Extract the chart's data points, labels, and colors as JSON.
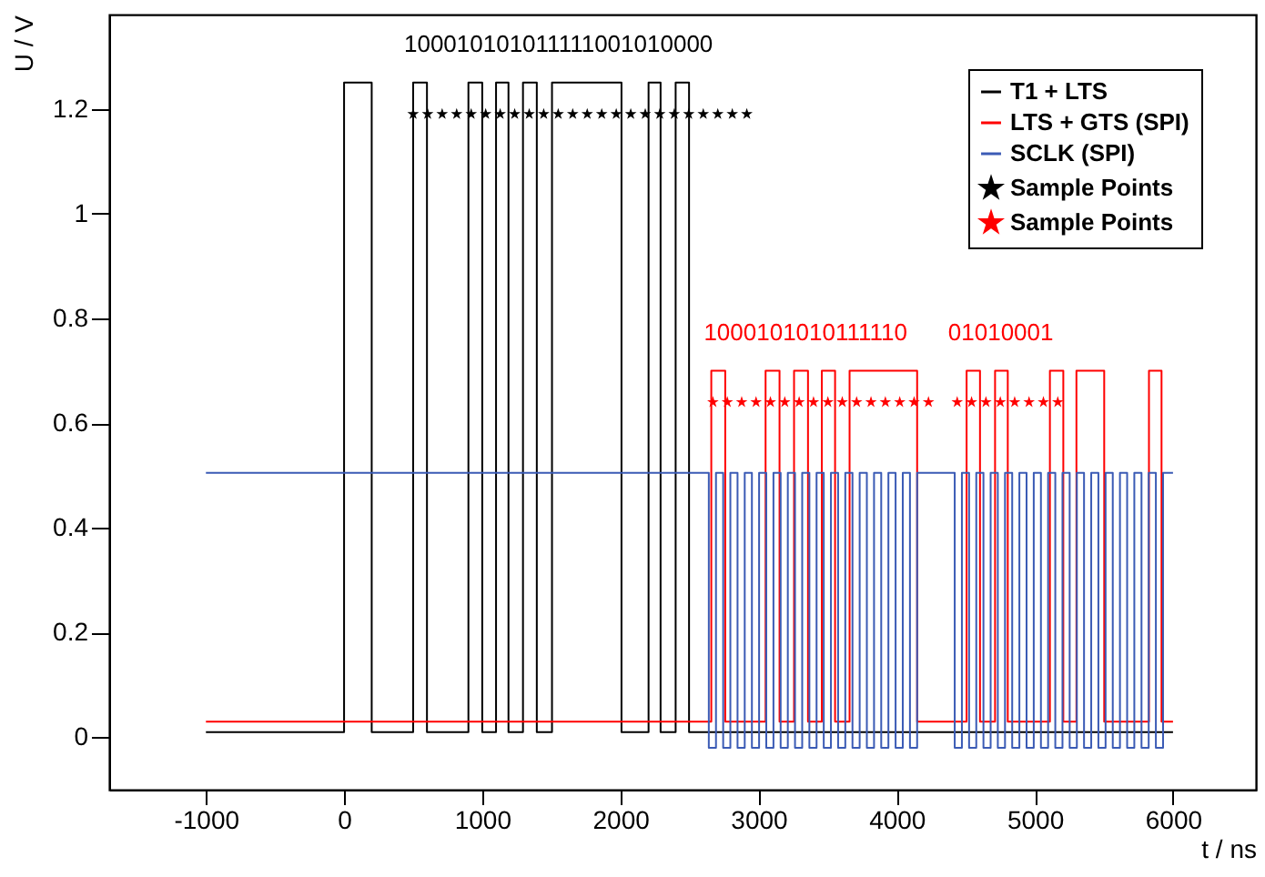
{
  "chart_data": {
    "type": "line",
    "xlabel": "t / ns",
    "ylabel": "U / V",
    "xlim": [
      -1700,
      6600
    ],
    "ylim": [
      -0.1,
      1.38
    ],
    "xticks": [
      -1000,
      0,
      1000,
      2000,
      3000,
      4000,
      5000,
      6000
    ],
    "yticks": [
      0,
      0.2,
      0.4,
      0.6,
      0.8,
      1,
      1.2
    ],
    "legend": "top right",
    "annotations": [
      {
        "text": "100010101011111001010000",
        "x": 500,
        "y": 1.19
      },
      {
        "text": "1000101010111110",
        "x": 2670,
        "y": 0.64
      },
      {
        "text": "01010001",
        "x": 4438,
        "y": 0.64
      }
    ],
    "series": [
      {
        "name": "T1 + LTS",
        "color": "#000000",
        "marker": "none",
        "x": [
          -1000,
          0,
          0,
          200,
          200,
          500,
          500,
          600,
          600,
          900,
          900,
          1000,
          1000,
          1100,
          1100,
          1190,
          1190,
          1295,
          1295,
          1395,
          1395,
          1505,
          1505,
          2008,
          2008,
          2204,
          2204,
          2291,
          2291,
          2400,
          2400,
          2497,
          2497,
          6000
        ],
        "values": [
          0.01,
          0.01,
          1.25,
          1.25,
          0.01,
          0.01,
          1.25,
          1.25,
          0.01,
          0.01,
          1.25,
          1.25,
          0.01,
          0.01,
          1.25,
          1.25,
          0.01,
          0.01,
          1.25,
          1.25,
          0.01,
          0.01,
          1.25,
          1.25,
          0.01,
          0.01,
          1.25,
          1.25,
          0.01,
          0.01,
          1.25,
          1.25,
          0.01,
          0.01
        ]
      },
      {
        "name": "LTS + GTS (SPI)",
        "color": "#ff0000",
        "marker": "none",
        "x": [
          -1000,
          2658,
          2658,
          2759,
          2759,
          3051,
          3051,
          3152,
          3152,
          3257,
          3257,
          3358,
          3358,
          3458,
          3458,
          3554,
          3554,
          3659,
          3659,
          4148,
          4148,
          4506,
          4506,
          4603,
          4603,
          4712,
          4712,
          4804,
          4804,
          5109,
          5109,
          5206,
          5206,
          5301,
          5301,
          5502,
          5502,
          5826,
          5826,
          5917,
          5917,
          6000
        ],
        "values": [
          0.03,
          0.03,
          0.7,
          0.7,
          0.03,
          0.03,
          0.7,
          0.7,
          0.03,
          0.03,
          0.7,
          0.7,
          0.03,
          0.03,
          0.7,
          0.7,
          0.03,
          0.03,
          0.7,
          0.7,
          0.03,
          0.03,
          0.7,
          0.7,
          0.03,
          0.03,
          0.7,
          0.7,
          0.03,
          0.03,
          0.7,
          0.7,
          0.03,
          0.03,
          0.7,
          0.7,
          0.03,
          0.03,
          0.7,
          0.7,
          0.03,
          0.03
        ]
      },
      {
        "name": "SCLK (SPI)",
        "color": "#3b5bb5",
        "marker": "none",
        "x": [
          -1000,
          2640,
          2640,
          2692,
          2692,
          2744,
          2744,
          2796,
          2796,
          2848,
          2848,
          2900,
          2900,
          2952,
          2952,
          3004,
          3004,
          3056,
          3056,
          3108,
          3108,
          3160,
          3160,
          3212,
          3212,
          3264,
          3264,
          3316,
          3316,
          3368,
          3368,
          3420,
          3420,
          3472,
          3472,
          3524,
          3524,
          3576,
          3576,
          3628,
          3628,
          3680,
          3680,
          3732,
          3732,
          3784,
          3784,
          3836,
          3836,
          3888,
          3888,
          3940,
          3940,
          3992,
          3992,
          4044,
          4044,
          4096,
          4096,
          4148,
          4148,
          4420,
          4420,
          4472,
          4472,
          4524,
          4524,
          4576,
          4576,
          4628,
          4628,
          4680,
          4680,
          4732,
          4732,
          4784,
          4784,
          4836,
          4836,
          4888,
          4888,
          4940,
          4940,
          4992,
          4992,
          5044,
          5044,
          5096,
          5096,
          5148,
          5148,
          5200,
          5200,
          5252,
          5252,
          5304,
          5304,
          5356,
          5356,
          5408,
          5408,
          5460,
          5460,
          5512,
          5512,
          5564,
          5564,
          5616,
          5616,
          5668,
          5668,
          5720,
          5720,
          5772,
          5772,
          5824,
          5824,
          5876,
          5876,
          5928,
          5928,
          6000
        ],
        "values": [
          0.505,
          0.505,
          -0.02,
          -0.02,
          0.505,
          0.505,
          -0.02,
          -0.02,
          0.505,
          0.505,
          -0.02,
          -0.02,
          0.505,
          0.505,
          -0.02,
          -0.02,
          0.505,
          0.505,
          -0.02,
          -0.02,
          0.505,
          0.505,
          -0.02,
          -0.02,
          0.505,
          0.505,
          -0.02,
          -0.02,
          0.505,
          0.505,
          -0.02,
          -0.02,
          0.505,
          0.505,
          -0.02,
          -0.02,
          0.505,
          0.505,
          -0.02,
          -0.02,
          0.505,
          0.505,
          -0.02,
          -0.02,
          0.505,
          0.505,
          -0.02,
          -0.02,
          0.505,
          0.505,
          -0.02,
          -0.02,
          0.505,
          0.505,
          -0.02,
          -0.02,
          0.505,
          0.505,
          -0.02,
          -0.02,
          0.505,
          0.505,
          -0.02,
          -0.02,
          0.505,
          0.505,
          -0.02,
          -0.02,
          0.505,
          0.505,
          -0.02,
          -0.02,
          0.505,
          0.505,
          -0.02,
          -0.02,
          0.505,
          0.505,
          -0.02,
          -0.02,
          0.505,
          0.505,
          -0.02,
          -0.02,
          0.505,
          0.505,
          -0.02,
          -0.02,
          0.505,
          0.505,
          -0.02,
          -0.02,
          0.505,
          0.505,
          -0.02,
          -0.02,
          0.505,
          0.505,
          -0.02,
          -0.02,
          0.505,
          0.505,
          -0.02,
          -0.02,
          0.505,
          0.505,
          -0.02,
          -0.02,
          0.505,
          0.505,
          -0.02,
          -0.02,
          0.505,
          0.505,
          -0.02,
          -0.02,
          0.505,
          0.505,
          -0.02,
          -0.02,
          0.505,
          0.505
        ]
      },
      {
        "name": "Sample Points",
        "type": "scatter",
        "color": "#000000",
        "marker": "star",
        "x": [
          500,
          605,
          710,
          815,
          920,
          1025,
          1130,
          1235,
          1340,
          1445,
          1550,
          1655,
          1760,
          1865,
          1970,
          2075,
          2180,
          2285,
          2390,
          2495,
          2600,
          2705,
          2810,
          2915
        ],
        "values": [
          1.19,
          1.19,
          1.19,
          1.19,
          1.19,
          1.19,
          1.19,
          1.19,
          1.19,
          1.19,
          1.19,
          1.19,
          1.19,
          1.19,
          1.19,
          1.19,
          1.19,
          1.19,
          1.19,
          1.19,
          1.19,
          1.19,
          1.19,
          1.19
        ]
      },
      {
        "name": "Sample Points",
        "type": "scatter",
        "color": "#ff0000",
        "marker": "star",
        "x": [
          2670,
          2774,
          2878,
          2982,
          3086,
          3190,
          3294,
          3398,
          3502,
          3606,
          3710,
          3814,
          3918,
          4022,
          4126,
          4230,
          4438,
          4542,
          4646,
          4750,
          4854,
          4958,
          5062,
          5166
        ],
        "values": [
          0.64,
          0.64,
          0.64,
          0.64,
          0.64,
          0.64,
          0.64,
          0.64,
          0.64,
          0.64,
          0.64,
          0.64,
          0.64,
          0.64,
          0.64,
          0.64,
          0.64,
          0.64,
          0.64,
          0.64,
          0.64,
          0.64,
          0.64,
          0.64
        ]
      }
    ]
  }
}
